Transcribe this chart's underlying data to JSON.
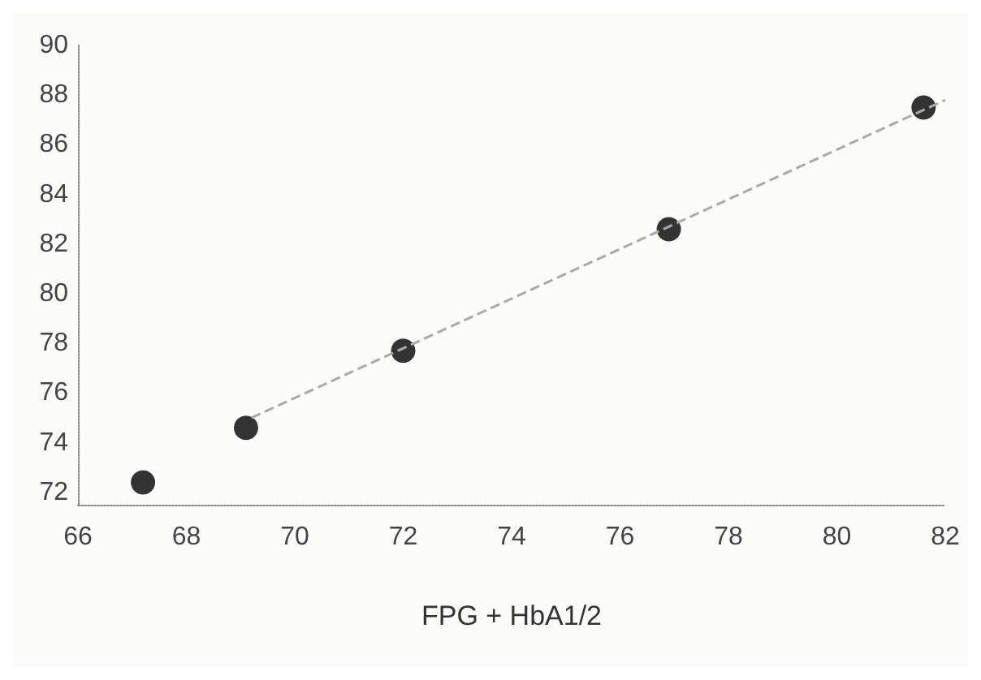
{
  "chart_data": {
    "type": "scatter",
    "xlabel": "FPG + HbA1/2",
    "series": [
      {
        "color": "#333333",
        "x": [
          67.2,
          69.1,
          72,
          76.9,
          81.6
        ],
        "values": [
          72.4,
          74.6,
          77.7,
          82.6,
          87.5
        ],
        "marker": "circle"
      },
      {
        "type": "line",
        "color": "#aaaaaa",
        "x": [
          69.2,
          82
        ],
        "values": [
          75,
          87.8
        ],
        "marker": "none",
        "line_style": "dashed"
      }
    ],
    "xlim": [
      66,
      82
    ],
    "xticks": [
      66,
      68,
      70,
      72,
      74,
      76,
      78,
      80,
      82
    ],
    "ylim": [
      71.5,
      90
    ],
    "yticks": [
      72,
      74,
      76,
      78,
      80,
      82,
      84,
      86,
      88,
      90
    ],
    "grid": false
  }
}
